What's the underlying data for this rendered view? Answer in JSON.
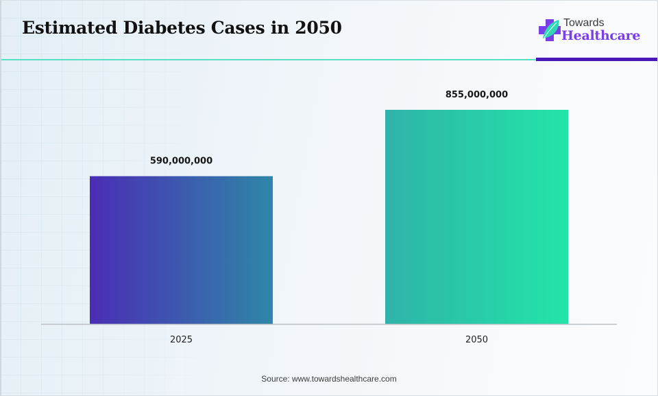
{
  "header": {
    "title": "Estimated Diabetes Cases in 2050"
  },
  "logo": {
    "line1": "Towards",
    "line2": "Healthcare",
    "icon": "medical-cross-leaf-icon",
    "colors": {
      "cross": "#7a3ee8",
      "leaf": "#2fd9b3",
      "text": "#7a3ee8"
    }
  },
  "accent_colors": {
    "teal_rule": "#56dfc0",
    "purple_rule": "#4a17b8"
  },
  "source": "Source: www.towardshealthcare.com",
  "chart_data": {
    "type": "bar",
    "title": "Estimated Diabetes Cases in 2050",
    "xlabel": "",
    "ylabel": "",
    "categories": [
      "2025",
      "2050"
    ],
    "values": [
      590000000,
      855000000
    ],
    "data_labels": [
      "590,000,000",
      "855,000,000"
    ],
    "ylim": [
      0,
      1000000000
    ],
    "grid": false,
    "legend": "none",
    "bar_gradients": [
      {
        "from": "#4a2db5",
        "to": "#2f86a8"
      },
      {
        "from": "#2fb3a9",
        "to": "#22e5a8"
      }
    ],
    "axis_color": "#b9bfc3"
  }
}
